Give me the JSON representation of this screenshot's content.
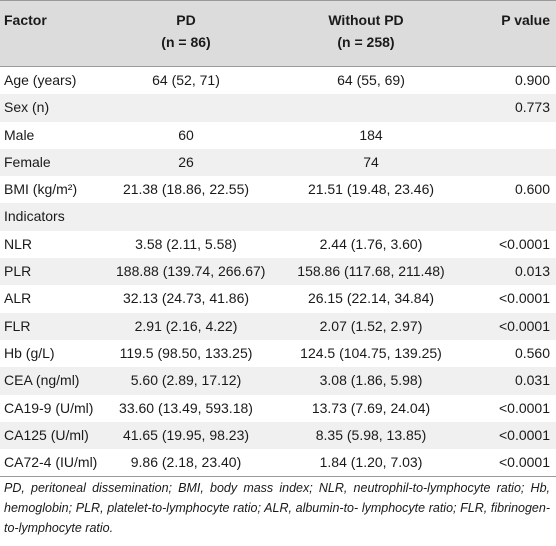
{
  "header": {
    "factor": "Factor",
    "pd": "PD",
    "pd_n": "(n = 86)",
    "without_pd": "Without PD",
    "without_pd_n": "(n = 258)",
    "p_value": "P value"
  },
  "rows": [
    {
      "factor": "Age (years)",
      "pd": "64 (52, 71)",
      "without_pd": "64 (55, 69)",
      "p": "0.900"
    },
    {
      "factor": "Sex (n)",
      "pd": "",
      "without_pd": "",
      "p": "0.773"
    },
    {
      "factor": "Male",
      "pd": "60",
      "without_pd": "184",
      "p": ""
    },
    {
      "factor": "Female",
      "pd": "26",
      "without_pd": "74",
      "p": ""
    },
    {
      "factor": "BMI (kg/m²)",
      "pd": "21.38 (18.86, 22.55)",
      "without_pd": "21.51 (19.48, 23.46)",
      "p": "0.600"
    },
    {
      "factor": "Indicators",
      "pd": "",
      "without_pd": "",
      "p": ""
    },
    {
      "factor": "NLR",
      "pd": "3.58 (2.11, 5.58)",
      "without_pd": "2.44 (1.76, 3.60)",
      "p": "<0.0001"
    },
    {
      "factor": "PLR",
      "pd": "188.88 (139.74, 266.67)",
      "without_pd": "158.86 (117.68, 211.48)",
      "p": "0.013"
    },
    {
      "factor": "ALR",
      "pd": "32.13 (24.73, 41.86)",
      "without_pd": "26.15 (22.14, 34.84)",
      "p": "<0.0001"
    },
    {
      "factor": "FLR",
      "pd": "2.91 (2.16, 4.22)",
      "without_pd": "2.07 (1.52, 2.97)",
      "p": "<0.0001"
    },
    {
      "factor": "Hb (g/L)",
      "pd": "119.5 (98.50, 133.25)",
      "without_pd": "124.5 (104.75, 139.25)",
      "p": "0.560"
    },
    {
      "factor": "CEA (ng/ml)",
      "pd": "5.60 (2.89, 17.12)",
      "without_pd": "3.08 (1.86, 5.98)",
      "p": "0.031"
    },
    {
      "factor": "CA19-9 (U/ml)",
      "pd": "33.60 (13.49, 593.18)",
      "without_pd": "13.73 (7.69, 24.04)",
      "p": "<0.0001"
    },
    {
      "factor": "CA125 (U/ml)",
      "pd": "41.65 (19.95, 98.23)",
      "without_pd": "8.35 (5.98, 13.85)",
      "p": "<0.0001"
    },
    {
      "factor": "CA72-4 (IU/ml)",
      "pd": "9.86 (2.18, 23.40)",
      "without_pd": "1.84 (1.20, 7.03)",
      "p": "<0.0001"
    }
  ],
  "footnote": "PD, peritoneal dissemination; BMI, body mass index; NLR, neutrophil-to-lymphocyte ratio; Hb, hemoglobin; PLR, platelet-to-lymphocyte ratio; ALR, albumin-to- lymphocyte ratio; FLR, fibrinogen-to-lymphocyte ratio."
}
